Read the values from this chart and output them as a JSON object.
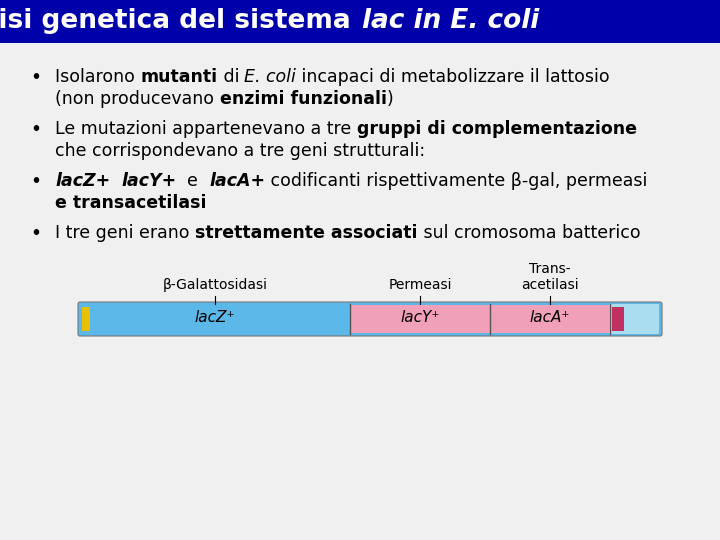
{
  "title_normal": "L’analisi genetica del sistema ",
  "title_italic": "lac in E. coli",
  "title_bg": "#0000AA",
  "title_color": "#FFFFFF",
  "slide_bg": "#F0F0F0",
  "diagram_label1": "β-Galattosidasi",
  "diagram_label2": "Permeasi",
  "diagram_label3": "Trans-\nacetilasi",
  "diagram_gene1": "lacZ⁺",
  "diagram_gene2": "lacY⁺",
  "diagram_gene3": "lacA⁺",
  "color_blue": "#5BB8E8",
  "color_pink": "#F0A0B8",
  "color_light_blue_right": "#AADDEE",
  "color_yellow": "#E8C000",
  "color_dark_pink": "#C03060",
  "font_size_title": 19,
  "font_size_body": 12.5,
  "font_size_diagram_label": 10,
  "font_size_diagram_gene": 11
}
